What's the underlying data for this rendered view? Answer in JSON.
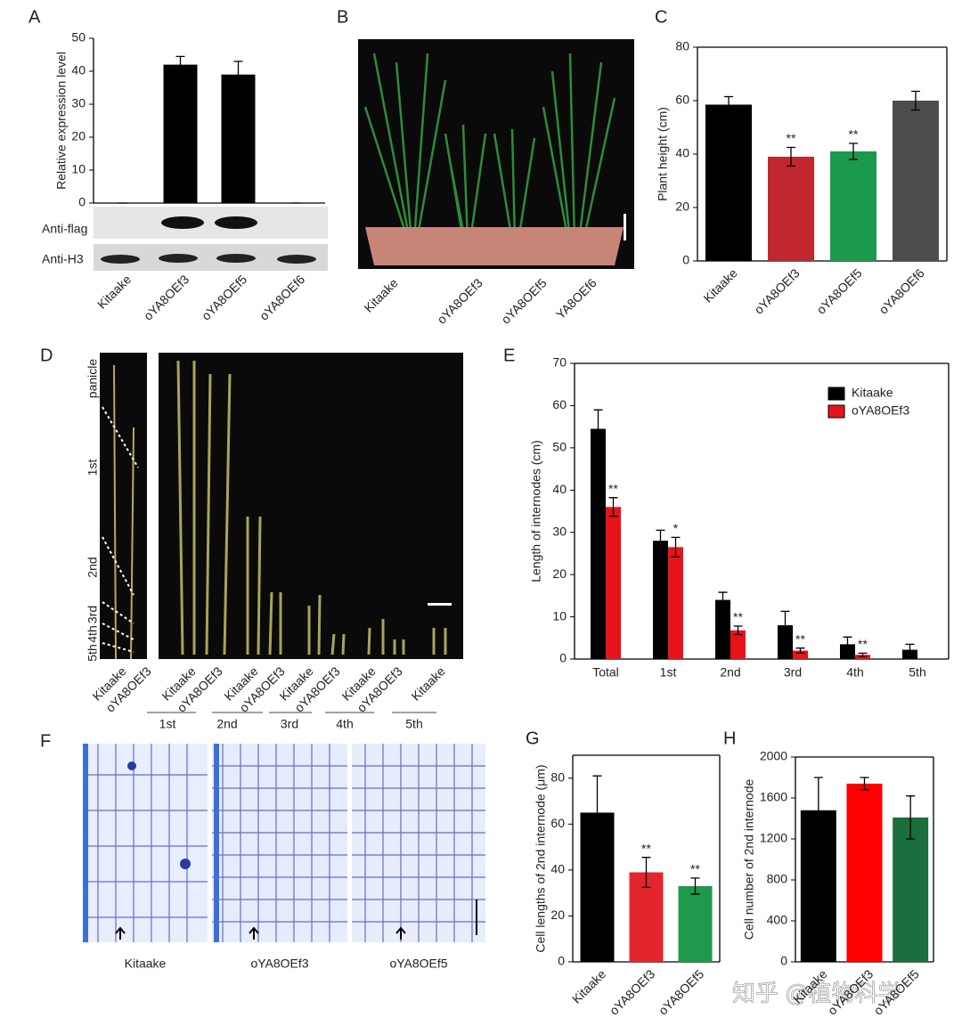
{
  "panel_letters": [
    "A",
    "B",
    "C",
    "D",
    "E",
    "F",
    "G",
    "H"
  ],
  "blot": {
    "labels": [
      "Anti-flag",
      "Anti-H3"
    ]
  },
  "photo_b": {
    "labels": [
      "Kitaake",
      "oYA8OEf3",
      "oYA8OEf5",
      "YA8OEf6"
    ]
  },
  "photo_d": {
    "side_labels": [
      "panicle",
      "1st",
      "2nd",
      "3rd",
      "4th",
      "5th"
    ],
    "sample_labels": [
      "Kitaake",
      "oYA8OEf3",
      "Kitaake",
      "oYA8OEf3",
      "Kitaake",
      "oYA8OEf3",
      "Kitaake",
      "oYA8OEf3",
      "Kitaake",
      "oYA8OEf3",
      "Kitaake"
    ],
    "group_labels": [
      "1st",
      "2nd",
      "3rd",
      "4th",
      "5th"
    ]
  },
  "photo_f": {
    "labels": [
      "Kitaake",
      "oYA8OEf3",
      "oYA8OEf5"
    ]
  },
  "watermark": "知乎 @植物科学",
  "chart_data": [
    {
      "type": "bar",
      "ylabel": "Relative expression level",
      "categories": [
        "Kitaake",
        "oYA8OEf3",
        "oYA8OEf5",
        "oYA8OEf6"
      ],
      "series": [
        {
          "colors": [
            "#000000",
            "#000000",
            "#000000",
            "#000000"
          ],
          "values": [
            0,
            42,
            39,
            0
          ],
          "errors": [
            0,
            2.5,
            4,
            0
          ]
        }
      ],
      "ylim": [
        0,
        50
      ],
      "yticks": [
        0,
        10,
        20,
        30,
        40,
        50
      ]
    },
    {
      "type": "bar",
      "ylabel": "Plant height (cm)",
      "categories": [
        "Kitaake",
        "oYA8OEf3",
        "oYA8OEf5",
        "oYA8OEf6"
      ],
      "series": [
        {
          "colors": [
            "#000000",
            "#c1272d",
            "#1b9a4b",
            "#4d4d4d"
          ],
          "values": [
            58.5,
            39,
            41,
            60
          ],
          "errors": [
            3,
            3.5,
            3,
            3.5
          ],
          "significance": [
            null,
            "**",
            "**",
            null
          ]
        }
      ],
      "ylim": [
        0,
        80
      ],
      "yticks": [
        0,
        20,
        40,
        60,
        80
      ]
    },
    {
      "type": "bar",
      "ylabel": "Length of internodes  (cm)",
      "categories": [
        "Total",
        "1st",
        "2nd",
        "3rd",
        "4th",
        "5th"
      ],
      "series": [
        {
          "name": "Kitaake",
          "color": "#000000",
          "values": [
            54.5,
            28,
            14,
            8,
            3.5,
            2.2
          ],
          "errors": [
            4.5,
            2.5,
            1.8,
            3.3,
            1.7,
            1.3
          ]
        },
        {
          "name": "oYA8OEf3",
          "color": "#e8141b",
          "values": [
            36,
            26.5,
            6.8,
            2,
            1,
            null
          ],
          "errors": [
            2.2,
            2.3,
            1,
            0.6,
            0.4,
            null
          ],
          "significance": [
            "**",
            "*",
            "**",
            "**",
            "**",
            null
          ]
        }
      ],
      "ylim": [
        0,
        70
      ],
      "yticks": [
        0,
        10,
        20,
        30,
        40,
        50,
        60,
        70
      ],
      "legend": "upper right"
    },
    {
      "type": "bar",
      "ylabel": "Cell lengths of 2nd internode (μm)",
      "categories": [
        "Kitaake",
        "oYA8OEf3",
        "oYA8OEf5"
      ],
      "series": [
        {
          "colors": [
            "#000000",
            "#e3262c",
            "#1f9a4d"
          ],
          "values": [
            65,
            39,
            33
          ],
          "errors": [
            16,
            6.5,
            3.5
          ],
          "significance": [
            null,
            "**",
            "**"
          ]
        }
      ],
      "ylim": [
        0,
        90
      ],
      "yticks": [
        0,
        20,
        40,
        60,
        80
      ]
    },
    {
      "type": "bar",
      "ylabel": "Cell number of 2nd internode",
      "categories": [
        "Kitaake",
        "oYA8OEf3",
        "oYA8OEf5"
      ],
      "series": [
        {
          "colors": [
            "#000000",
            "#ff0000",
            "#1b6e3d"
          ],
          "values": [
            1480,
            1740,
            1410
          ],
          "errors": [
            320,
            60,
            210
          ]
        }
      ],
      "ylim": [
        0,
        2000
      ],
      "yticks": [
        0,
        400,
        800,
        1200,
        1600,
        2000
      ]
    }
  ]
}
